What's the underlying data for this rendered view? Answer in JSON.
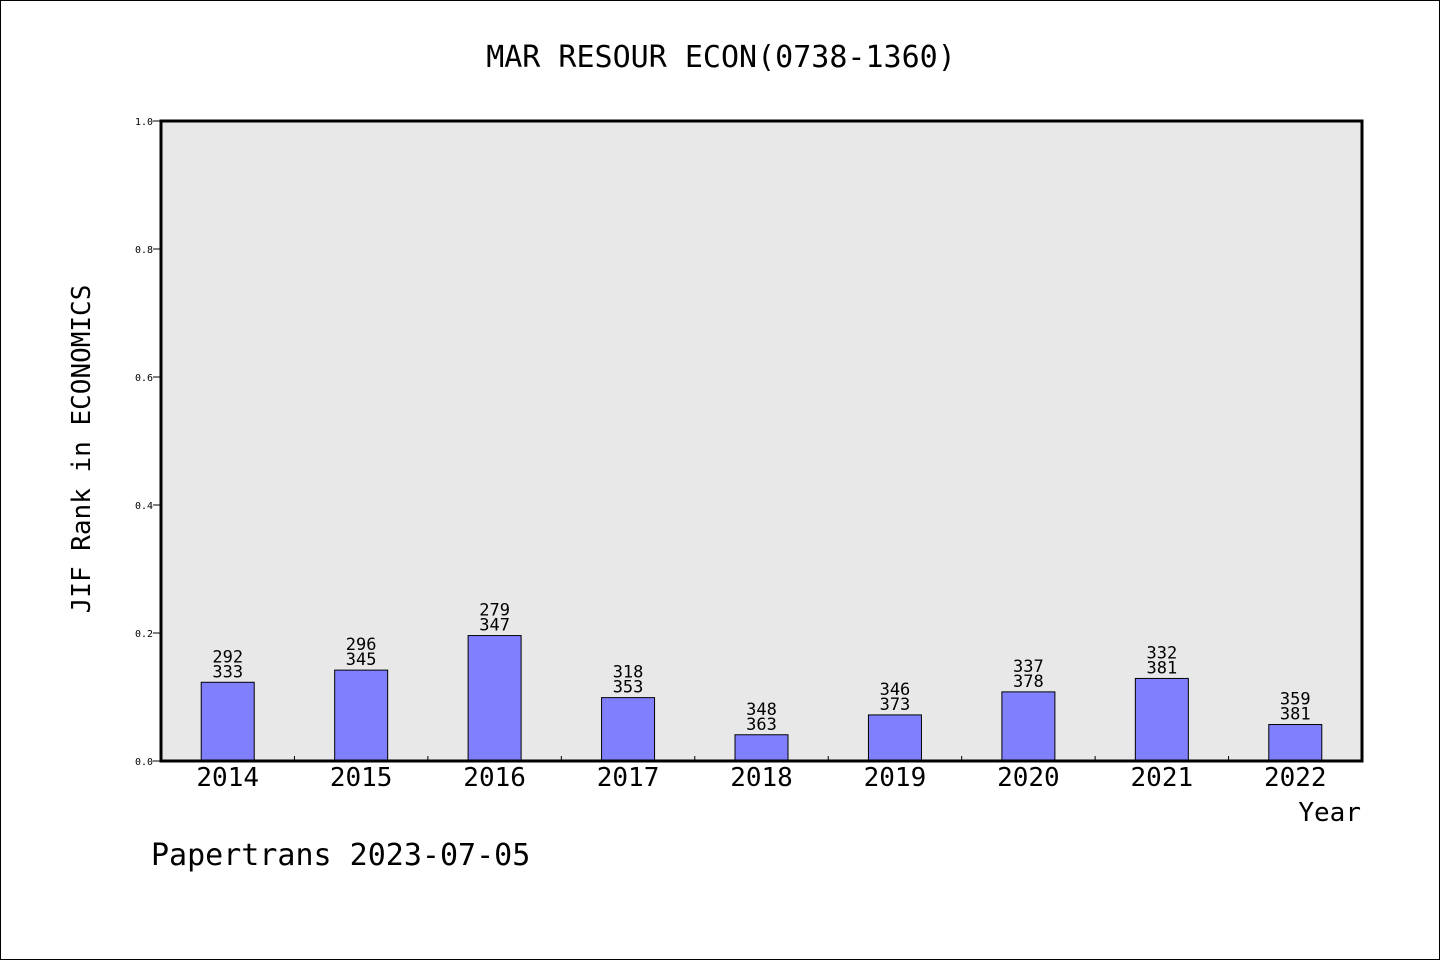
{
  "chart_data": {
    "type": "bar",
    "title": "MAR RESOUR ECON(0738-1360)",
    "xlabel": "Year",
    "ylabel": "JIF Rank in ECONOMICS",
    "ylim": [
      0,
      1.0
    ],
    "yticks": [
      "0.0",
      "0.2",
      "0.4",
      "0.6",
      "0.8",
      "1.0"
    ],
    "categories": [
      "2014",
      "2015",
      "2016",
      "2017",
      "2018",
      "2019",
      "2020",
      "2021",
      "2022"
    ],
    "values": [
      0.123,
      0.142,
      0.196,
      0.099,
      0.041,
      0.072,
      0.108,
      0.129,
      0.057
    ],
    "labels_top": [
      "292",
      "296",
      "279",
      "318",
      "348",
      "346",
      "337",
      "332",
      "359"
    ],
    "labels_bottom": [
      "333",
      "345",
      "347",
      "353",
      "363",
      "373",
      "378",
      "381",
      "381"
    ],
    "bar_color": "#8080ff",
    "plot_background": "#e8e8e8",
    "grid": false,
    "legend": "none"
  },
  "footer": "Papertrans 2023-07-05"
}
